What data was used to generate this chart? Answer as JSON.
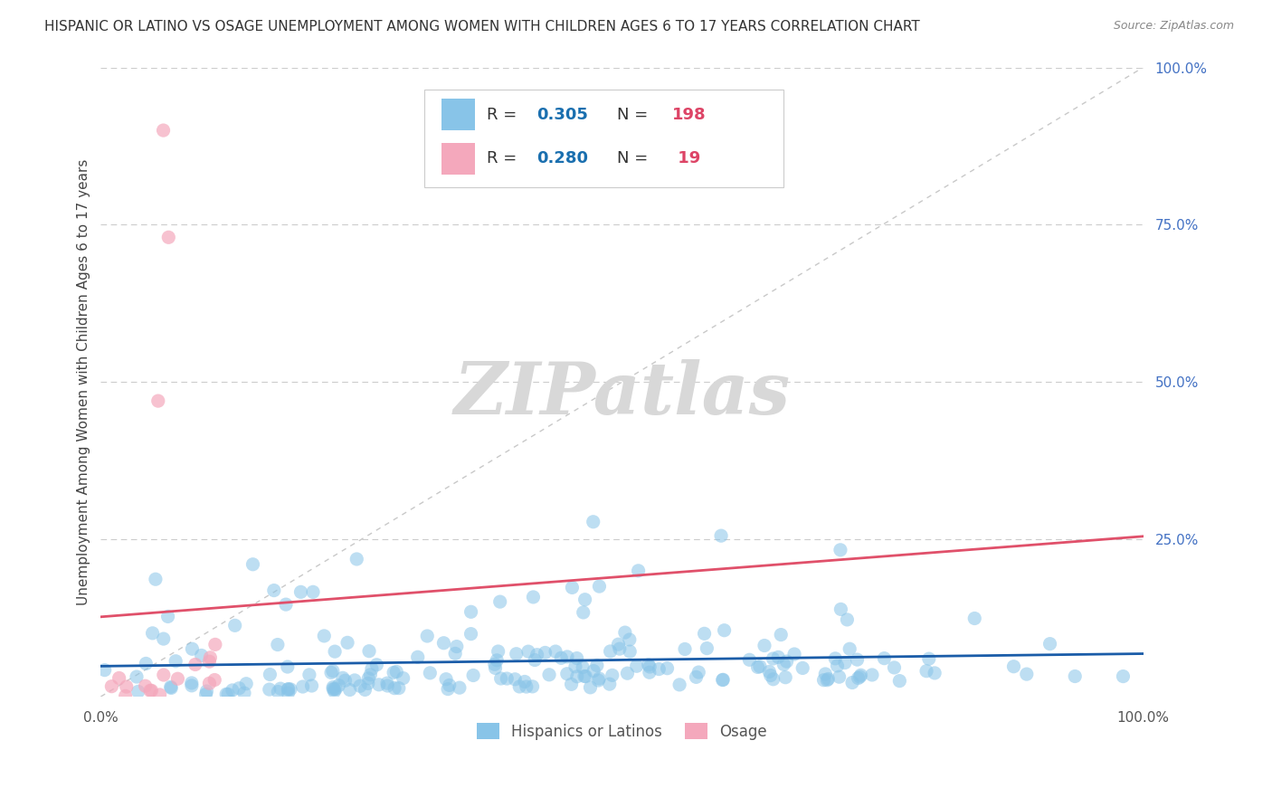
{
  "title": "HISPANIC OR LATINO VS OSAGE UNEMPLOYMENT AMONG WOMEN WITH CHILDREN AGES 6 TO 17 YEARS CORRELATION CHART",
  "source": "Source: ZipAtlas.com",
  "ylabel": "Unemployment Among Women with Children Ages 6 to 17 years",
  "xlim": [
    0,
    1
  ],
  "ylim": [
    0,
    1
  ],
  "blue_R": 0.305,
  "blue_N": 198,
  "pink_R": 0.28,
  "pink_N": 19,
  "blue_color": "#88c4e8",
  "pink_color": "#f4a8bc",
  "blue_line_color": "#1a5ca8",
  "pink_line_color": "#e0506a",
  "diagonal_color": "#bbbbbb",
  "watermark": "ZIPatlas",
  "background_color": "#ffffff",
  "grid_color": "#cccccc",
  "title_color": "#333333",
  "legend_R_color": "#1a6faf",
  "legend_N_color": "#dd4466",
  "right_tick_color": "#4472c4"
}
